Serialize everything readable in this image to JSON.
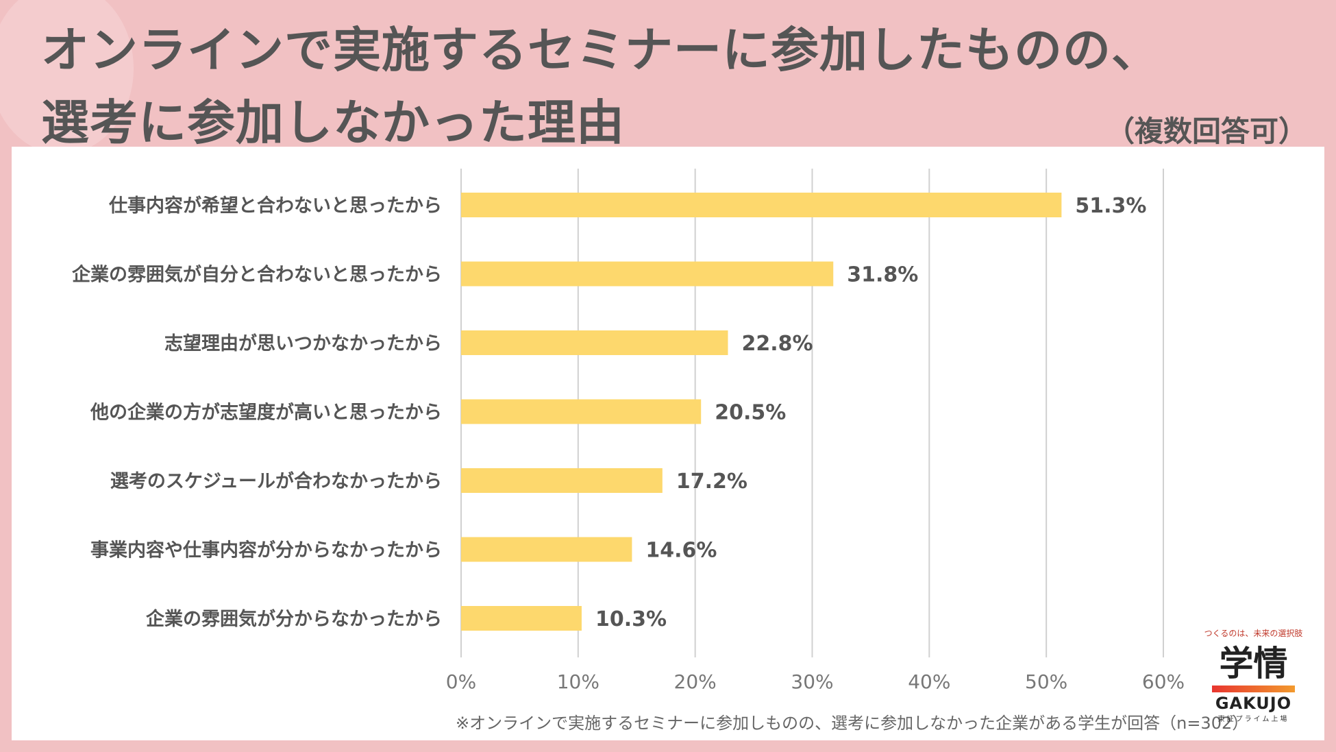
{
  "header": {
    "title_line1": "オンラインで実施するセミナーに参加したものの、",
    "title_line2": "選考に参加しなかった理由",
    "note": "（複数回答可）"
  },
  "footnote": "※オンラインで実施するセミナーに参加しものの、選考に参加しなかった企業がある学生が回答（n=302）",
  "logo": {
    "tagline": "つくるのは、未来の選択肢",
    "mark": "学情",
    "word": "GAKUJO",
    "sub": "東証プライム上場"
  },
  "colors": {
    "background": "#f1c1c3",
    "bar": "#fdd86d",
    "grid": "#d0d0d0",
    "text": "#555555",
    "axis_text": "#777777"
  },
  "chart_data": {
    "type": "bar",
    "orientation": "horizontal",
    "title": "",
    "categories": [
      "仕事内容が希望と合わないと思ったから",
      "企業の雰囲気が自分と合わないと思ったから",
      "志望理由が思いつかなかったから",
      "他の企業の方が志望度が高いと思ったから",
      "選考のスケジュールが合わなかったから",
      "事業内容や仕事内容が分からなかったから",
      "企業の雰囲気が分からなかったから"
    ],
    "values": [
      51.3,
      31.8,
      22.8,
      20.5,
      17.2,
      14.6,
      10.3
    ],
    "value_labels": [
      "51.3%",
      "31.8%",
      "22.8%",
      "20.5%",
      "17.2%",
      "14.6%",
      "10.3%"
    ],
    "xlim": [
      0,
      60
    ],
    "xticks": [
      0,
      10,
      20,
      30,
      40,
      50,
      60
    ],
    "xtick_labels": [
      "0%",
      "10%",
      "20%",
      "30%",
      "40%",
      "50%",
      "60%"
    ],
    "xlabel": "",
    "ylabel": "",
    "grid": "vertical"
  }
}
